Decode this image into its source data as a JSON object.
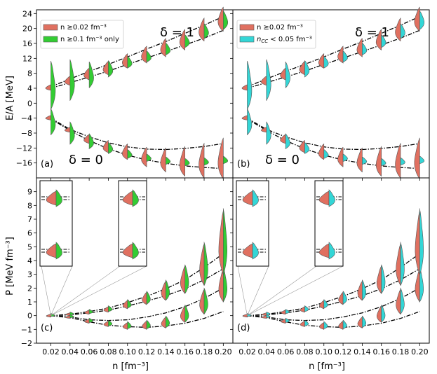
{
  "colors": {
    "red": "#e07060",
    "green": "#33cc33",
    "cyan": "#33d6d6",
    "edge": "#555555",
    "band": "#000000"
  },
  "chart_data": [
    {
      "panel": "(a)",
      "type": "violin",
      "xlabel": "",
      "ylabel": "E/A [MeV]",
      "ylim": [
        -20,
        25
      ],
      "yticks": [
        -16,
        -12,
        -8,
        -4,
        0,
        4,
        8,
        12,
        16,
        20,
        24
      ],
      "xlim": [
        0.005,
        0.21
      ],
      "xticks": [
        0.02,
        0.04,
        0.06,
        0.08,
        0.1,
        0.12,
        0.14,
        0.16,
        0.18,
        0.2
      ],
      "annotations": [
        "δ = 1",
        "δ = 0"
      ],
      "legend": {
        "position": "top-left",
        "entries": [
          {
            "label": "n ≥0.02 fm⁻³",
            "color": "red"
          },
          {
            "label": "n ≥0.1 fm⁻³ only",
            "color": "green"
          }
        ]
      },
      "right_color": "green",
      "series": [
        {
          "name": "delta1",
          "n": [
            0.02,
            0.04,
            0.06,
            0.08,
            0.1,
            0.12,
            0.14,
            0.16,
            0.18,
            0.2
          ],
          "left": [
            4.2,
            6.0,
            7.8,
            9.4,
            11.3,
            13.0,
            14.9,
            17.0,
            19.7,
            22.5
          ],
          "right": [
            4.8,
            6.2,
            7.6,
            9.2,
            11.0,
            12.5,
            14.5,
            16.6,
            19.3,
            22.2
          ],
          "right_spread": [
            6.5,
            5.5,
            3.5,
            2.2,
            1.6,
            1.5,
            1.6,
            1.7,
            2.0,
            2.5
          ],
          "band_lower": [
            4.0,
            5.5,
            7.0,
            8.6,
            10.4,
            12.1,
            13.8,
            15.6,
            17.4,
            19.5
          ],
          "band_upper": [
            4.4,
            6.5,
            8.5,
            10.4,
            12.4,
            14.5,
            16.5,
            18.7,
            20.9,
            23.2
          ]
        },
        {
          "name": "delta0",
          "n": [
            0.02,
            0.04,
            0.06,
            0.08,
            0.1,
            0.12,
            0.14,
            0.16,
            0.18,
            0.2
          ],
          "left": [
            -3.9,
            -7.1,
            -9.6,
            -11.6,
            -13.0,
            -14.4,
            -15.2,
            -15.6,
            -15.4,
            -14.8
          ],
          "right": [
            -5.0,
            -8.0,
            -10.2,
            -12.0,
            -13.6,
            -14.6,
            -15.4,
            -15.8,
            -15.6,
            -15.2
          ],
          "right_spread": [
            3.5,
            3.0,
            2.0,
            1.5,
            1.2,
            1.0,
            1.0,
            1.0,
            1.0,
            1.0
          ],
          "band_upper": [
            -4.0,
            -7.0,
            -9.0,
            -10.6,
            -11.7,
            -12.3,
            -12.4,
            -12.1,
            -11.6,
            -10.8
          ],
          "band_lower": [
            -4.2,
            -7.3,
            -10.0,
            -12.2,
            -13.9,
            -15.2,
            -16.1,
            -16.8,
            -17.2,
            -17.5
          ]
        }
      ]
    },
    {
      "panel": "(b)",
      "type": "violin",
      "xlabel": "",
      "ylabel": "",
      "ylim": [
        -20,
        25
      ],
      "annotations": [
        "δ = 1",
        "δ = 0"
      ],
      "legend": {
        "position": "top-left",
        "entries": [
          {
            "label": "n ≥0.02 fm⁻³",
            "color": "red"
          },
          {
            "label": "n",
            "label_sub": "CC",
            "label_rest": " < 0.05 fm⁻³",
            "color": "cyan"
          }
        ]
      },
      "right_color": "cyan"
    },
    {
      "panel": "(c)",
      "type": "violin",
      "xlabel": "n [fm⁻³]",
      "ylabel": "P [MeV fm⁻³]",
      "ylim": [
        -2,
        10
      ],
      "yticks": [
        -2,
        -1,
        0,
        1,
        2,
        3,
        4,
        5,
        6,
        7,
        8,
        9
      ],
      "xticklabels": [
        "0.02",
        "0.04",
        "0.06",
        "0.08",
        "0.10",
        "0.12",
        "0.14",
        "0.16",
        "0.18",
        "0.20"
      ],
      "right_color": "green",
      "series": [
        {
          "name": "pressure-symmetric",
          "n": [
            0.02,
            0.04,
            0.06,
            0.08,
            0.1,
            0.12,
            0.14,
            0.16,
            0.18,
            0.2
          ],
          "center": [
            0.0,
            -0.1,
            -0.4,
            -0.6,
            -0.75,
            -0.7,
            -0.5,
            0.1,
            1.0,
            2.2
          ],
          "spread": [
            0.05,
            0.1,
            0.15,
            0.2,
            0.25,
            0.3,
            0.4,
            0.6,
            0.9,
            1.2
          ]
        },
        {
          "name": "pressure-neutron",
          "n": [
            0.02,
            0.04,
            0.06,
            0.08,
            0.1,
            0.12,
            0.14,
            0.16,
            0.18,
            0.2
          ],
          "center": [
            0.0,
            0.1,
            0.25,
            0.45,
            0.8,
            1.25,
            1.8,
            2.6,
            3.7,
            5.3
          ],
          "spread": [
            0.05,
            0.1,
            0.15,
            0.2,
            0.3,
            0.45,
            0.7,
            1.0,
            1.5,
            2.3
          ]
        }
      ],
      "bands": [
        {
          "upper": [
            0.0,
            0.1,
            0.3,
            0.55,
            0.95,
            1.4,
            1.95,
            2.6,
            3.5,
            4.5
          ],
          "lower": [
            0.0,
            0.05,
            0.2,
            0.4,
            0.7,
            1.05,
            1.45,
            1.95,
            2.6,
            3.4
          ]
        },
        {
          "upper": [
            0.0,
            -0.1,
            -0.3,
            -0.35,
            -0.3,
            -0.1,
            0.2,
            0.65,
            1.25,
            2.0
          ],
          "lower": [
            0.0,
            -0.15,
            -0.45,
            -0.7,
            -0.8,
            -0.85,
            -0.75,
            -0.55,
            -0.2,
            0.3
          ]
        }
      ]
    },
    {
      "panel": "(d)",
      "type": "violin",
      "xlabel": "n [fm⁻³]",
      "ylabel": "",
      "ylim": [
        -2,
        10
      ],
      "xticklabels": [
        "0.02",
        "0.04",
        "0.06",
        "0.08",
        "0.10",
        "0.12",
        "0.14",
        "0.16",
        "0.18",
        "0.20"
      ],
      "right_color": "cyan"
    }
  ]
}
